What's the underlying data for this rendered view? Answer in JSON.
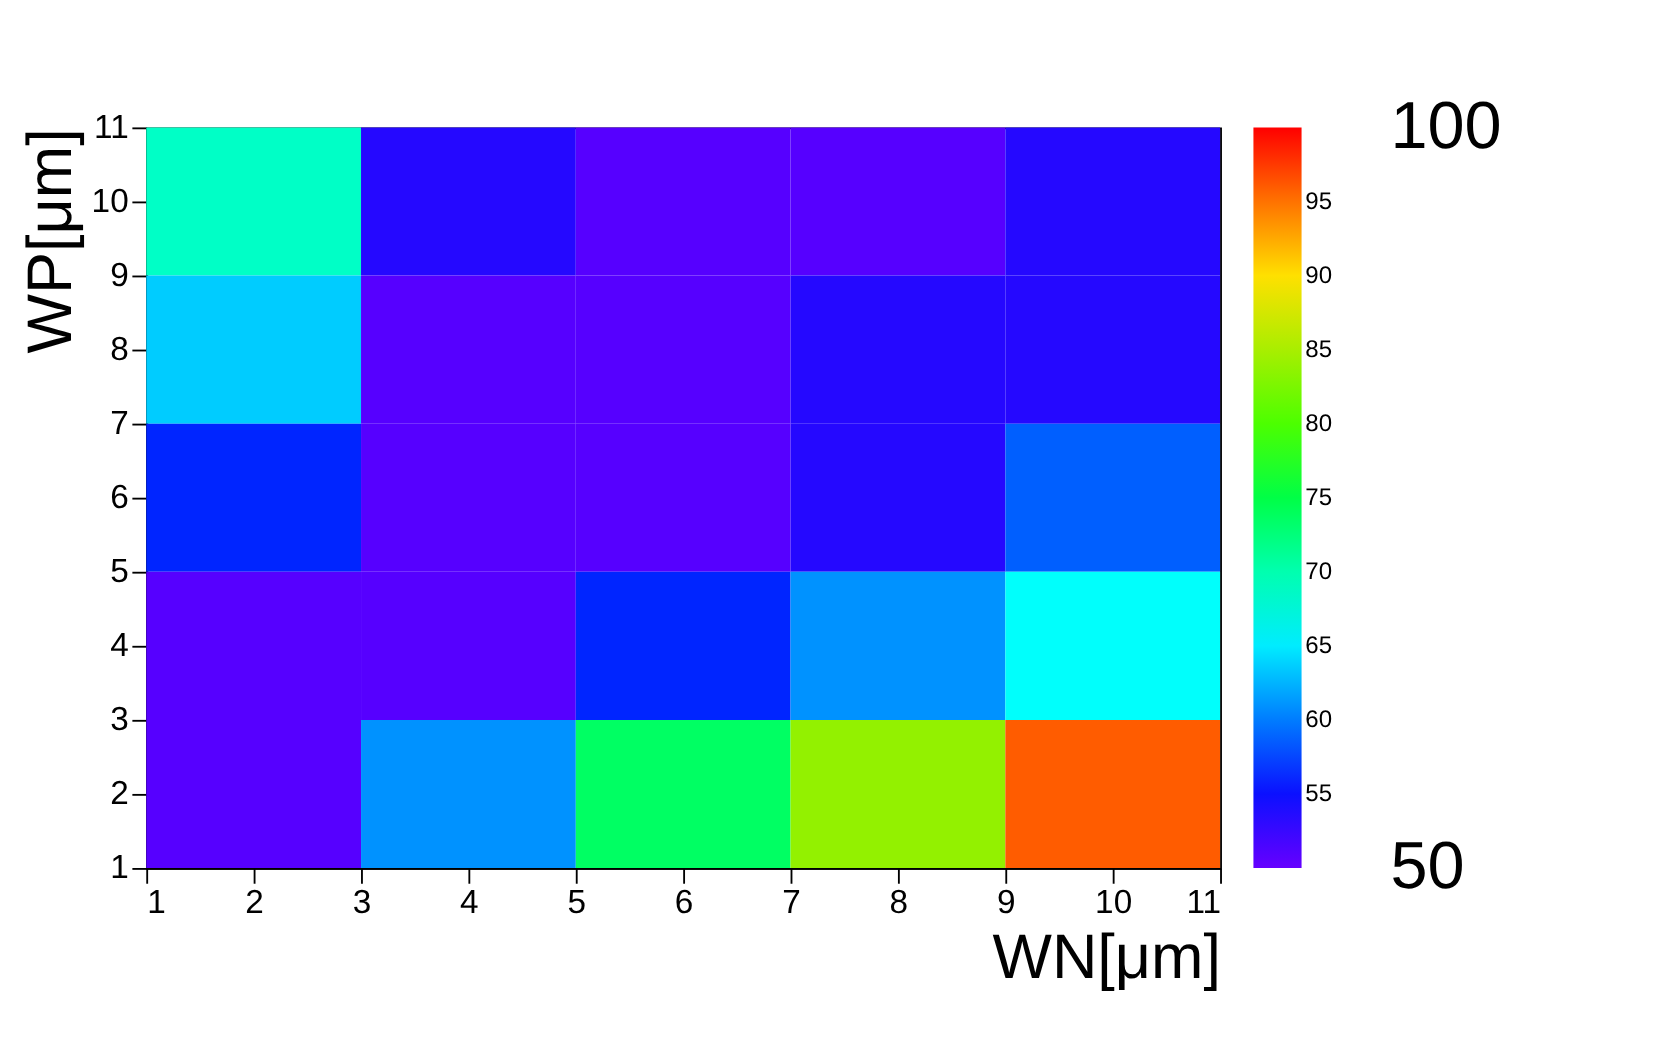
{
  "chart_data": {
    "type": "heatmap",
    "xlabel": "WN[μm]",
    "ylabel": "WP[μm]",
    "x": [
      2,
      4,
      6,
      8,
      10
    ],
    "y": [
      10,
      8,
      6,
      4,
      2
    ],
    "cells": [
      [
        68.8,
        53.8,
        51,
        51,
        53.8
      ],
      [
        63.8,
        51,
        51,
        53.8,
        53.8
      ],
      [
        56,
        51,
        51,
        53.8,
        58.8
      ],
      [
        51,
        51,
        56,
        61,
        66
      ],
      [
        51,
        61,
        73.8,
        83.8,
        96
      ]
    ],
    "xlim": [
      1,
      11
    ],
    "ylim": [
      1,
      11
    ],
    "xticks": [
      1,
      2,
      3,
      4,
      5,
      6,
      7,
      8,
      9,
      10,
      11
    ],
    "yticks": [
      1,
      2,
      3,
      4,
      5,
      6,
      7,
      8,
      9,
      10,
      11
    ],
    "clim": [
      50,
      100
    ],
    "cticks": [
      55,
      60,
      65,
      70,
      75,
      80,
      85,
      90,
      95
    ],
    "annotations": [
      "100",
      "50"
    ]
  }
}
